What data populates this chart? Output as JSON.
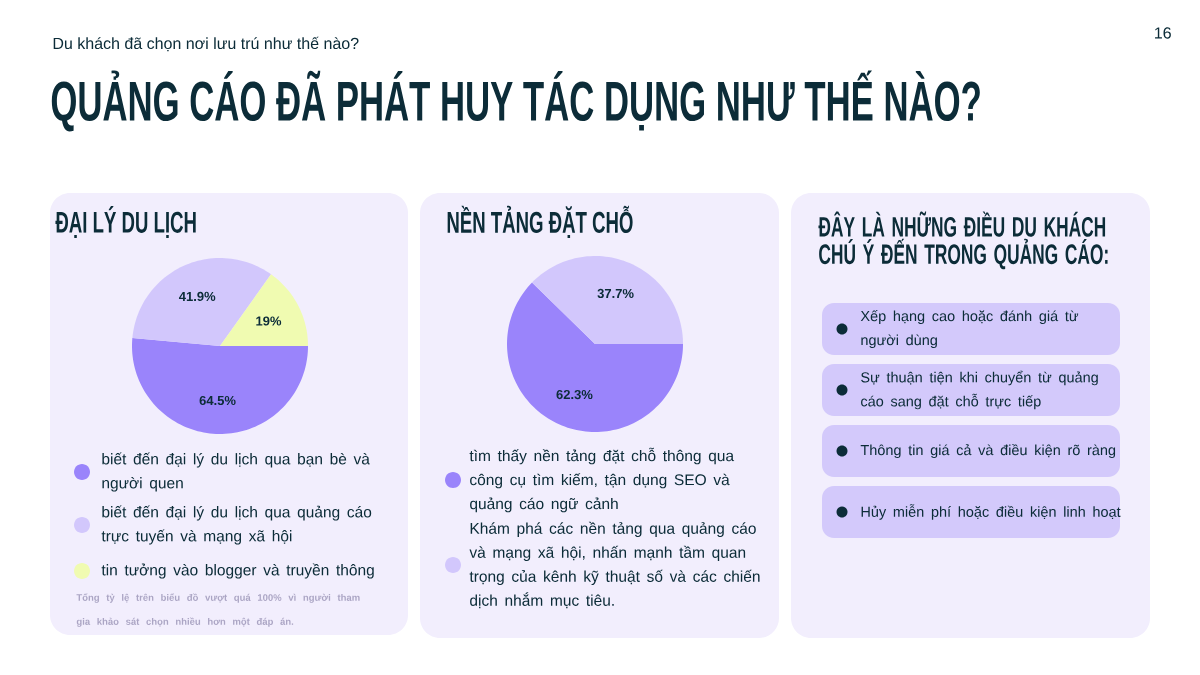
{
  "chart_data": [
    {
      "type": "other",
      "title": "QUẢNG CÁO ĐÃ PHÁT HUY TÁC DỤNG NHƯ THẾ NÀO?",
      "subtitle": "Du khách đã chọn nơi lưu trú như thế nào?",
      "annotations": [
        "16"
      ]
    },
    {
      "type": "pie",
      "title": "ĐẠI LÝ DU LỊCH",
      "categories": [
        "biết đến đại lý du lịch qua bạn bè và người quen",
        "biết đến đại lý du lịch qua quảng cáo trực tuyến và mạng xã hội",
        "tin tưởng vào blogger và truyền thông"
      ],
      "values": [
        64.5,
        41.9,
        19
      ],
      "value_labels": [
        "64.5%",
        "41.9%",
        "19%"
      ],
      "colors": [
        "#9a84fb",
        "#d2c7fc",
        "#f0fbb1"
      ],
      "legend": "bottom",
      "annotations": [
        "Tổng tỷ lệ trên biểu đồ vượt quá 100% vì người tham gia khảo sát chọn nhiều hơn một đáp án."
      ]
    },
    {
      "type": "pie",
      "title": "NỀN TẢNG ĐẶT CHỖ",
      "categories": [
        "tìm thấy nền tảng đặt chỗ thông qua công cụ tìm kiếm, tận dụng SEO và quảng cáo ngữ cảnh",
        "Khám phá các nền tảng qua quảng cáo và mạng xã hội, nhấn mạnh tầm quan trọng của kênh kỹ thuật số và các chiến dịch nhắm mục tiêu."
      ],
      "values": [
        62.3,
        37.7
      ],
      "value_labels": [
        "62.3%",
        "37.7%"
      ],
      "colors": [
        "#9a84fb",
        "#d2c7fc"
      ],
      "legend": "bottom"
    },
    {
      "type": "other",
      "title": "ĐÂY LÀ NHỮNG ĐIỀU DU KHÁCH CHÚ Ý ĐẾN TRONG QUẢNG CÁO:",
      "annotations": [
        "Xếp hạng cao hoặc đánh giá từ người dùng",
        "Sự thuận tiện khi chuyển từ quảng cáo sang đặt chỗ trực tiếp",
        "Thông tin giá cả và điều kiện rõ ràng",
        "Hủy miễn phí hoặc điều kiện linh hoạt"
      ]
    }
  ]
}
